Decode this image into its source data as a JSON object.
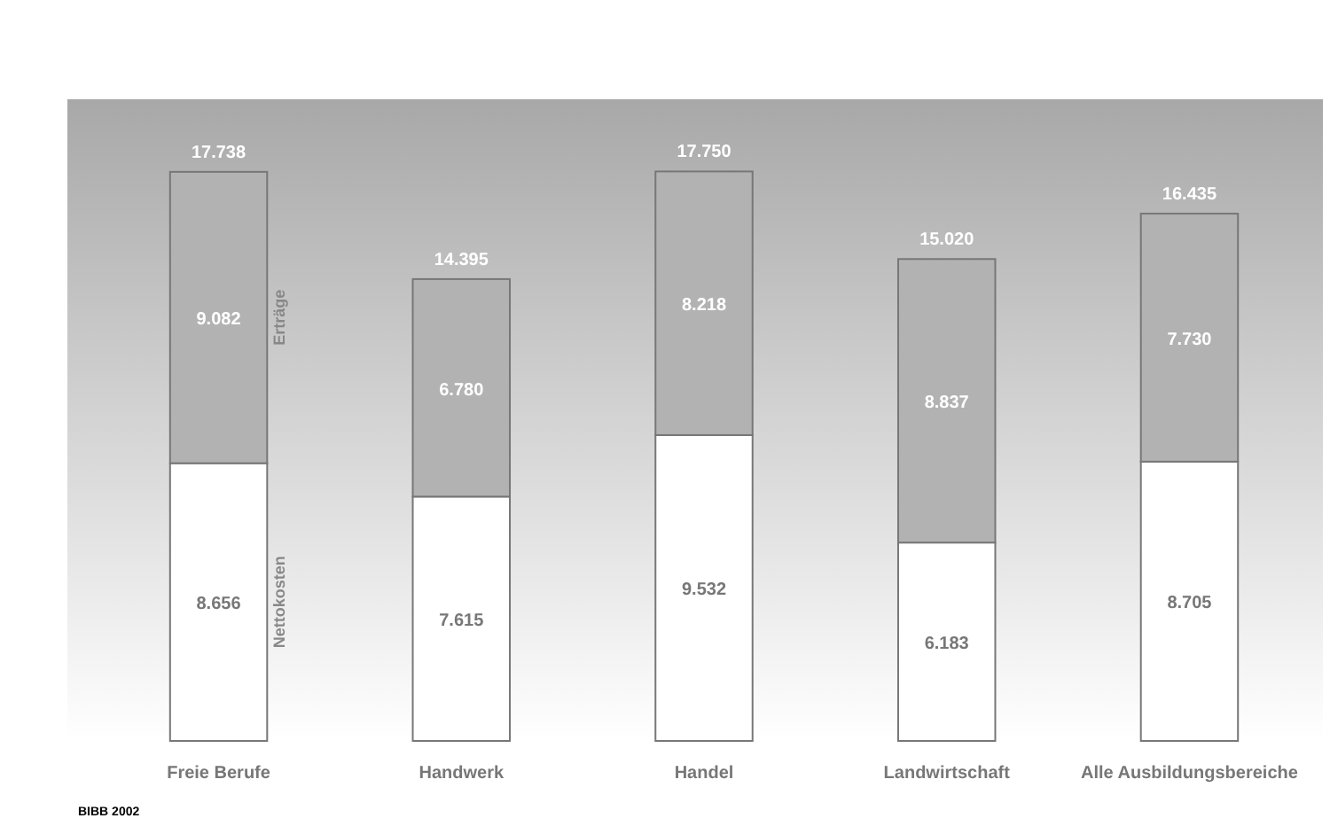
{
  "chart_data": {
    "type": "bar",
    "stacked": true,
    "categories": [
      "Freie Berufe",
      "Handwerk",
      "Handel",
      "Landwirtschaft",
      "Alle Ausbildungsbereiche"
    ],
    "ylim": [
      0,
      20000
    ],
    "series": [
      {
        "name": "Nettokosten",
        "color": "#ffffff",
        "values": [
          8656,
          7615,
          9532,
          6183,
          8705
        ],
        "value_labels": [
          "8.656",
          "7.615",
          "9.532",
          "6.183",
          "8.705"
        ]
      },
      {
        "name": "Erträge",
        "color": "#b2b2b2",
        "values": [
          9082,
          6780,
          8218,
          8837,
          7730
        ],
        "value_labels": [
          "9.082",
          "6.780",
          "8.218",
          "8.837",
          "7.730"
        ]
      }
    ],
    "totals": [
      "17.738",
      "14.395",
      "17.750",
      "15.020",
      "16.435"
    ],
    "annotations": [
      "BIBB 2002"
    ]
  }
}
